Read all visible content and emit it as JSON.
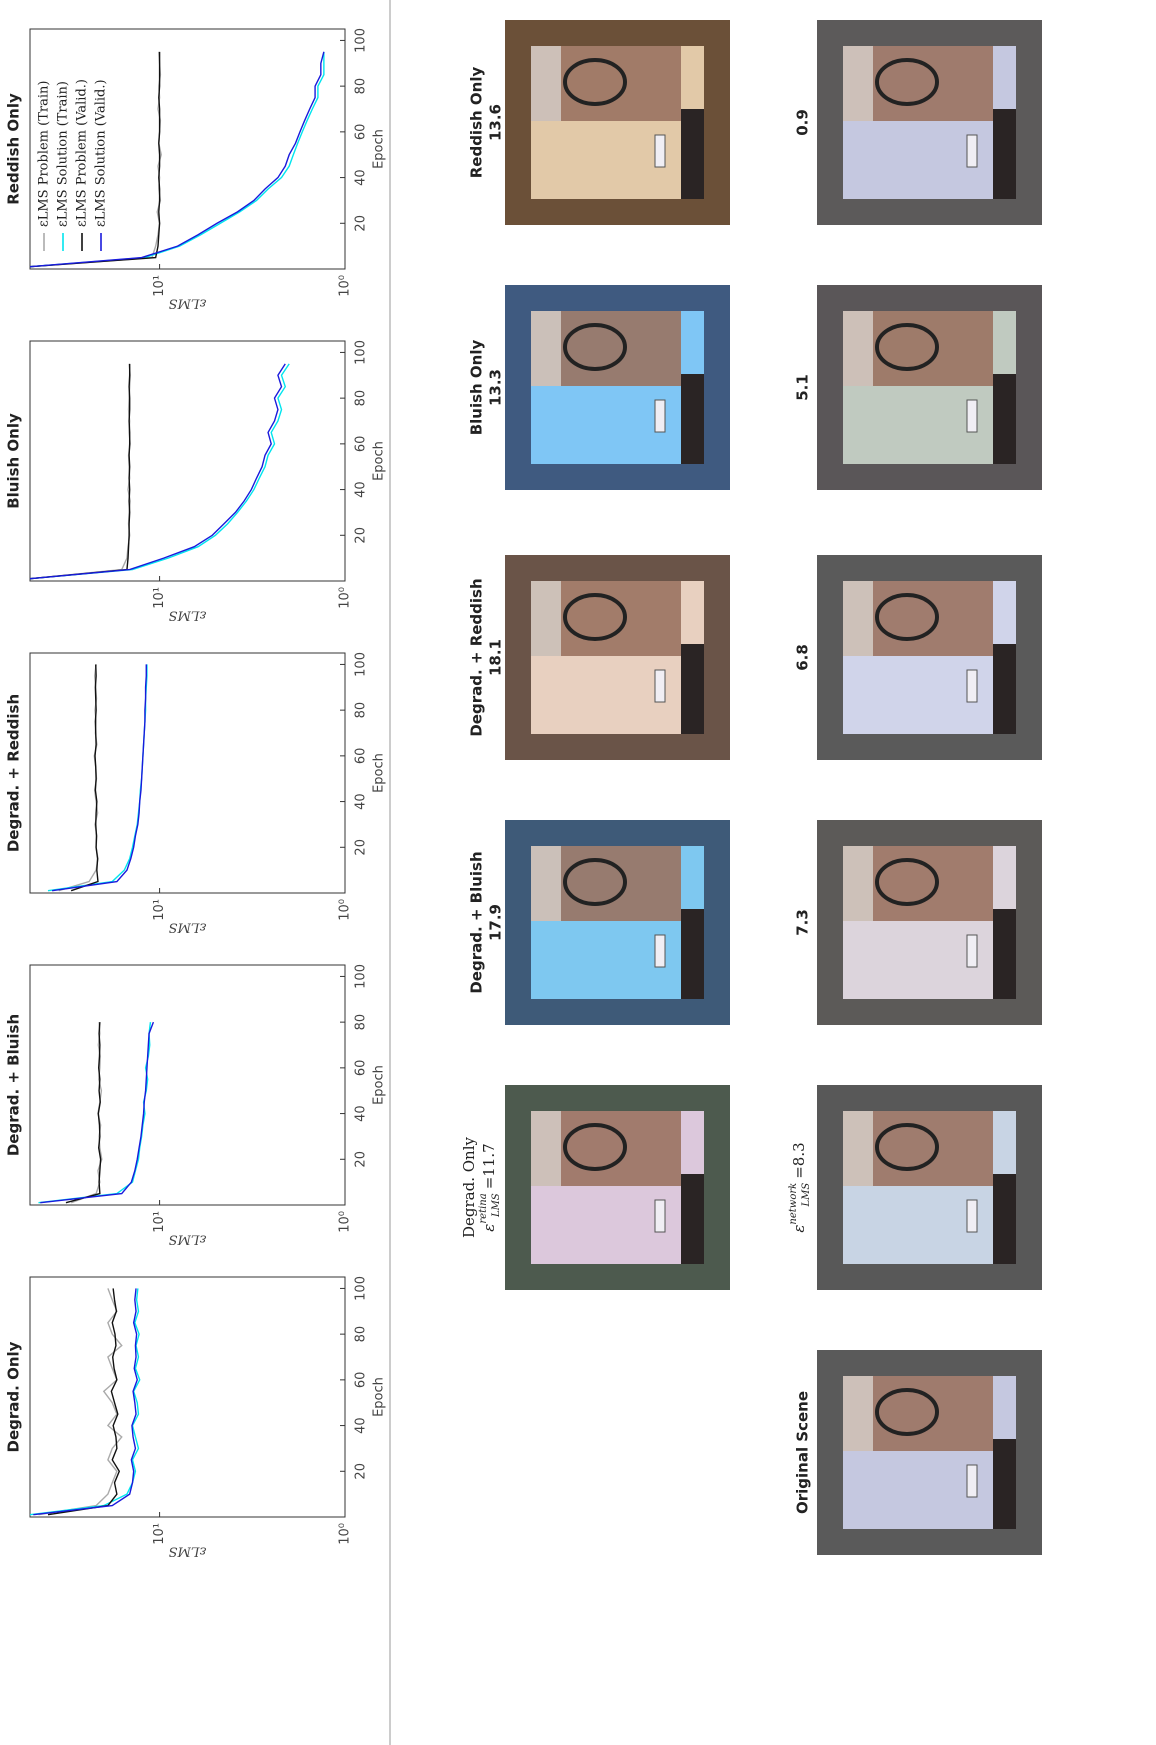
{
  "chart_data": [
    {
      "type": "line",
      "title": "Degrad. Only",
      "xlabel": "Epoch",
      "ylabel": "εLMS",
      "log_y": true,
      "x": [
        1,
        5,
        10,
        15,
        20,
        25,
        30,
        35,
        40,
        45,
        50,
        55,
        60,
        65,
        70,
        75,
        80,
        85,
        90,
        95,
        100
      ],
      "xlim": [
        0,
        105
      ],
      "ylim": [
        1,
        50
      ],
      "xticks": [
        20,
        40,
        60,
        80,
        100
      ],
      "yticks": [
        {
          "value": 1,
          "label": "10⁰"
        },
        {
          "value": 10,
          "label": "10¹"
        }
      ],
      "series": [
        {
          "color": "#aaaaaa",
          "values": [
            45,
            22,
            19,
            18,
            17,
            19,
            18,
            16,
            19,
            17,
            18,
            20,
            17,
            18,
            19,
            16,
            18,
            19,
            17,
            18,
            19
          ]
        },
        {
          "color": "#00e5ee",
          "values": [
            50,
            20,
            15,
            14,
            13.5,
            14,
            13,
            13.5,
            14,
            13,
            13.2,
            13.8,
            12.8,
            13.5,
            13,
            13.4,
            12.9,
            13.6,
            13,
            13.3,
            13.1
          ]
        },
        {
          "color": "#111111",
          "values": [
            40,
            19,
            17,
            17.5,
            16.5,
            18,
            17,
            17.2,
            17.8,
            16.8,
            17.5,
            18.2,
            17,
            17.6,
            17.9,
            17.2,
            17.4,
            18,
            17.1,
            17.5,
            17.8
          ]
        },
        {
          "color": "#1a1adc",
          "values": [
            48,
            18,
            14.5,
            14,
            13.8,
            14.2,
            13.5,
            13.9,
            14.1,
            13.4,
            13.6,
            13.9,
            13.2,
            13.7,
            13.4,
            13.5,
            13.3,
            13.8,
            13.4,
            13.6,
            13.4
          ]
        }
      ]
    },
    {
      "type": "line",
      "title": "Degrad. + Bluish",
      "xlabel": "Epoch",
      "ylabel": "εLMS",
      "log_y": true,
      "x": [
        1,
        5,
        10,
        15,
        20,
        25,
        30,
        35,
        40,
        45,
        50,
        55,
        60,
        65,
        70,
        75,
        80
      ],
      "xlim": [
        0,
        105
      ],
      "ylim": [
        1,
        50
      ],
      "xticks": [
        20,
        40,
        60,
        80,
        100
      ],
      "yticks": [
        {
          "value": 1,
          "label": "10⁰"
        },
        {
          "value": 10,
          "label": "10¹"
        }
      ],
      "series": [
        {
          "color": "#aaaaaa",
          "values": [
            30,
            22,
            21,
            21.5,
            20.5,
            21,
            21.2,
            20.8,
            21.5,
            21,
            20.6,
            21.3,
            21,
            20.9,
            21.4,
            21,
            21.2
          ]
        },
        {
          "color": "#00e5ee",
          "values": [
            45,
            17,
            14,
            13.5,
            13,
            12.8,
            12.5,
            12.3,
            12,
            12.2,
            11.8,
            11.6,
            11.9,
            11.5,
            11.3,
            11.4,
            11.2
          ]
        },
        {
          "color": "#111111",
          "values": [
            32,
            21,
            21.2,
            21,
            20.8,
            21.3,
            21,
            21.1,
            21.4,
            20.9,
            21.2,
            21,
            21.3,
            21.1,
            21,
            21.2,
            21
          ]
        },
        {
          "color": "#1a1adc",
          "values": [
            44,
            16,
            14.2,
            13.6,
            13.2,
            12.9,
            12.6,
            12.4,
            12.2,
            12.1,
            11.9,
            11.8,
            11.7,
            11.6,
            11.5,
            11.4,
            10.8
          ]
        }
      ]
    },
    {
      "type": "line",
      "title": "Degrad. + Reddish",
      "xlabel": "Epoch",
      "ylabel": "εLMS",
      "log_y": true,
      "x": [
        1,
        5,
        10,
        15,
        20,
        25,
        30,
        35,
        40,
        45,
        50,
        55,
        60,
        65,
        70,
        75,
        80,
        85,
        90,
        95,
        100
      ],
      "xlim": [
        0,
        105
      ],
      "ylim": [
        1,
        50
      ],
      "xticks": [
        20,
        40,
        60,
        80,
        100
      ],
      "yticks": [
        {
          "value": 1,
          "label": "10⁰"
        },
        {
          "value": 10,
          "label": "10¹"
        }
      ],
      "series": [
        {
          "color": "#aaaaaa",
          "values": [
            35,
            24,
            22,
            21.5,
            22,
            21.8,
            22.3,
            21.6,
            22,
            22.4,
            21.9,
            22.1,
            22.5,
            21.8,
            22.2,
            22,
            22.3,
            21.9,
            22.1,
            22.4,
            22
          ]
        },
        {
          "color": "#00e5ee",
          "values": [
            40,
            18,
            15.5,
            14.5,
            14,
            13.6,
            13.2,
            13,
            12.8,
            12.7,
            12.5,
            12.4,
            12.3,
            12.2,
            12.1,
            12,
            11.9,
            11.9,
            11.8,
            11.7,
            11.7
          ]
        },
        {
          "color": "#111111",
          "values": [
            30,
            21.5,
            21.8,
            21.6,
            22,
            21.9,
            22.1,
            22,
            21.8,
            22.2,
            22,
            22.1,
            22.3,
            22,
            22.1,
            22.2,
            22,
            22.1,
            22.2,
            22,
            22.1
          ]
        },
        {
          "color": "#1a1adc",
          "values": [
            38,
            17,
            15,
            14.3,
            13.8,
            13.5,
            13.1,
            12.9,
            12.8,
            12.6,
            12.5,
            12.4,
            12.3,
            12.2,
            12.1,
            12,
            12,
            11.9,
            11.9,
            11.8,
            11.8
          ]
        }
      ]
    },
    {
      "type": "line",
      "title": "Bluish Only",
      "xlabel": "Epoch",
      "ylabel": "εLMS",
      "log_y": true,
      "x": [
        1,
        5,
        10,
        15,
        20,
        25,
        30,
        35,
        40,
        45,
        50,
        55,
        60,
        65,
        70,
        75,
        80,
        85,
        90,
        95
      ],
      "xlim": [
        0,
        105
      ],
      "ylim": [
        1,
        50
      ],
      "xticks": [
        20,
        40,
        60,
        80,
        100
      ],
      "yticks": [
        {
          "value": 1,
          "label": "10⁰"
        },
        {
          "value": 10,
          "label": "10¹"
        }
      ],
      "series": [
        {
          "color": "#aaaaaa",
          "values": [
            50,
            16,
            15,
            14.8,
            14.5,
            14.7,
            14.6,
            14.4,
            14.8,
            14.5,
            14.6,
            14.7,
            14.4,
            14.6,
            14.5,
            14.7,
            14.6,
            14.5,
            14.4,
            14.6
          ]
        },
        {
          "color": "#00e5ee",
          "values": [
            50,
            14,
            9,
            6.2,
            5,
            4.3,
            3.8,
            3.4,
            3.1,
            2.9,
            2.7,
            2.6,
            2.4,
            2.5,
            2.3,
            2.2,
            2.3,
            2.1,
            2.2,
            2
          ]
        },
        {
          "color": "#111111",
          "values": [
            50,
            15,
            14.8,
            14.7,
            14.6,
            14.6,
            14.5,
            14.6,
            14.5,
            14.6,
            14.5,
            14.6,
            14.5,
            14.5,
            14.6,
            14.5,
            14.5,
            14.6,
            14.5,
            14.5
          ]
        },
        {
          "color": "#1a1adc",
          "values": [
            50,
            14.5,
            9.5,
            6.5,
            5.2,
            4.5,
            3.9,
            3.5,
            3.2,
            3,
            2.8,
            2.7,
            2.5,
            2.6,
            2.4,
            2.3,
            2.4,
            2.2,
            2.3,
            2.1
          ]
        }
      ]
    },
    {
      "type": "line",
      "title": "Reddish Only",
      "xlabel": "Epoch",
      "ylabel": "εLMS",
      "log_y": true,
      "legend": "upper right",
      "x": [
        1,
        5,
        10,
        15,
        20,
        25,
        30,
        35,
        40,
        45,
        50,
        55,
        60,
        65,
        70,
        75,
        80,
        85,
        90,
        95
      ],
      "xlim": [
        0,
        105
      ],
      "ylim": [
        1,
        50
      ],
      "xticks": [
        20,
        40,
        60,
        80,
        100
      ],
      "yticks": [
        {
          "value": 1,
          "label": "10⁰"
        },
        {
          "value": 10,
          "label": "10¹"
        }
      ],
      "series": [
        {
          "name": "εLMS Problem (Train)",
          "color": "#aaaaaa",
          "values": [
            50,
            11,
            10.5,
            10.2,
            10,
            10.3,
            9.9,
            10.1,
            10,
            10.2,
            9.8,
            10.1,
            10,
            9.9,
            10.2,
            10,
            10.1,
            9.9,
            10,
            10.1
          ]
        },
        {
          "name": "εLMS Solution (Train)",
          "color": "#00e5ee",
          "values": [
            50,
            12,
            7.8,
            6,
            4.7,
            3.7,
            3,
            2.6,
            2.2,
            2,
            1.9,
            1.8,
            1.7,
            1.6,
            1.5,
            1.4,
            1.4,
            1.3,
            1.3,
            1.3
          ]
        },
        {
          "name": "εLMS Problem (Valid.)",
          "color": "#111111",
          "values": [
            50,
            10.5,
            10.2,
            10.1,
            10,
            10.1,
            10,
            10,
            10.1,
            10,
            10,
            10.1,
            10,
            10,
            10,
            10.1,
            10,
            10,
            10,
            10
          ]
        },
        {
          "name": "εLMS Solution (Valid.)",
          "color": "#1a1adc",
          "values": [
            50,
            12.5,
            8,
            6.2,
            4.9,
            3.8,
            3.1,
            2.7,
            2.3,
            2.1,
            2,
            1.85,
            1.75,
            1.65,
            1.55,
            1.45,
            1.45,
            1.35,
            1.35,
            1.3
          ]
        }
      ]
    }
  ],
  "retina_row": {
    "label": {
      "symbol": "ε",
      "sup": "retina",
      "sub": "LMS",
      "eq": "="
    },
    "panels": [
      {
        "title": "Degrad. Only",
        "value": 11.7
      },
      {
        "title": "Degrad. + Bluish",
        "value": 17.9
      },
      {
        "title": "Degrad. + Reddish",
        "value": 18.1
      },
      {
        "title": "Bluish Only",
        "value": 13.3
      },
      {
        "title": "Reddish Only",
        "value": 13.6
      }
    ]
  },
  "network_row": {
    "original": "Original Scene",
    "label": {
      "symbol": "ε",
      "sup": "network",
      "sub": "LMS",
      "eq": "="
    },
    "values": [
      8.3,
      7.3,
      6.8,
      5.1,
      0.9
    ]
  }
}
